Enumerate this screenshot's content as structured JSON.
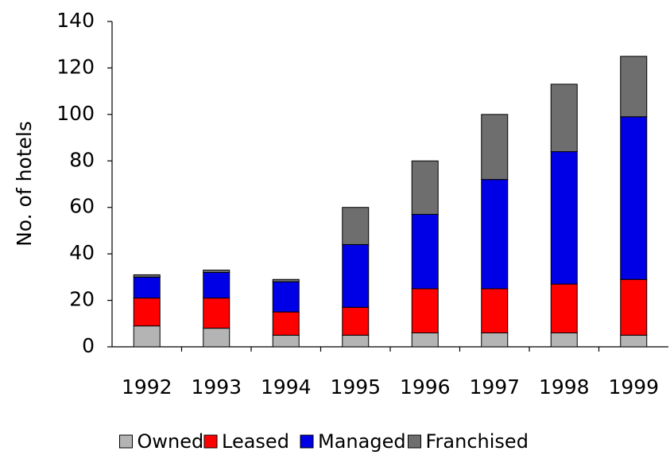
{
  "chart_data": {
    "type": "bar",
    "stacked": true,
    "y_label": "No. of hotels",
    "categories": [
      "1992",
      "1993",
      "1994",
      "1995",
      "1996",
      "1997",
      "1998",
      "1999"
    ],
    "series": [
      {
        "name": "Owned",
        "color": "#b4b4b4",
        "values": [
          9,
          8,
          5,
          5,
          6,
          6,
          6,
          5
        ]
      },
      {
        "name": "Leased",
        "color": "#ff0000",
        "values": [
          12,
          13,
          10,
          12,
          19,
          19,
          21,
          24
        ]
      },
      {
        "name": "Managed",
        "color": "#0000e6",
        "values": [
          9,
          11,
          13,
          27,
          32,
          47,
          57,
          70
        ]
      },
      {
        "name": "Franchised",
        "color": "#6e6e6e",
        "values": [
          1,
          1,
          1,
          16,
          23,
          28,
          29,
          26
        ]
      }
    ],
    "ylim": [
      0,
      140
    ],
    "yticks": [
      0,
      20,
      40,
      60,
      80,
      100,
      120,
      140
    ],
    "grid": false,
    "legend": "bottom"
  }
}
